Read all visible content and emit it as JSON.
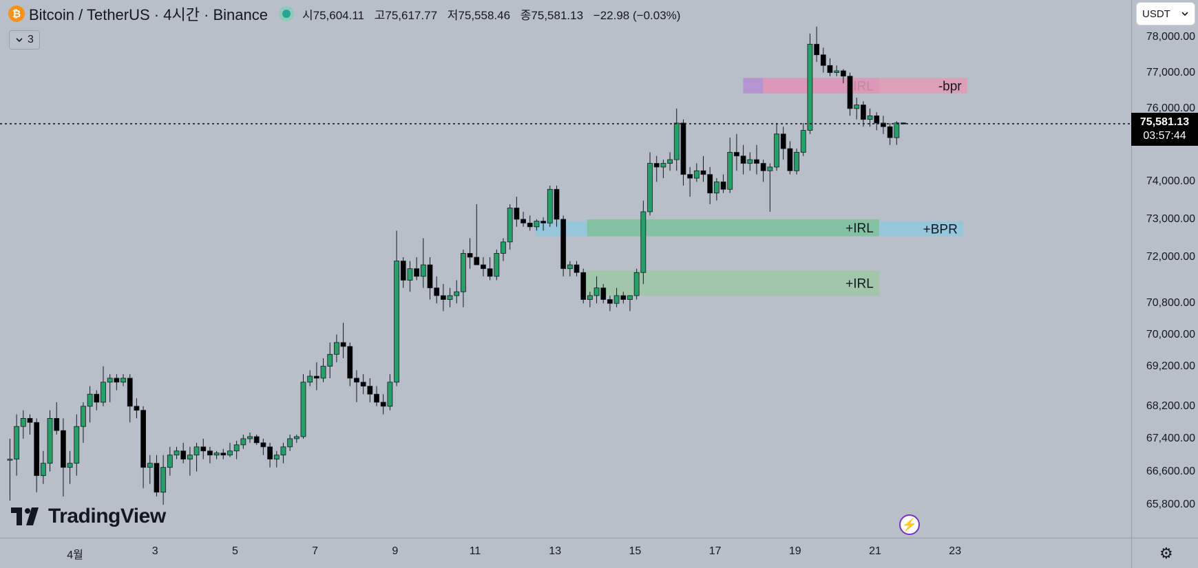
{
  "header": {
    "symbol_title": "Bitcoin / TetherUS · 4시간 · Binance",
    "btc_icon": "₿",
    "open_label": "시",
    "open": "75,604.11",
    "high_label": "고",
    "high": "75,617.77",
    "low_label": "저",
    "low": "75,558.46",
    "close_label": "종",
    "close": "75,581.13",
    "change": "−22.98 (−0.03%)"
  },
  "indicator_toggle": {
    "icon": "chevron-down-icon",
    "count": "3"
  },
  "currency_select": {
    "value": "USDT"
  },
  "last_price": {
    "value": "75,581.13",
    "countdown": "03:57:44"
  },
  "logo": {
    "text": "TradingView"
  },
  "colors": {
    "up": "#26a069",
    "down": "#000000",
    "background": "#b9bfc9"
  },
  "chart_data": {
    "type": "candlestick",
    "timeframe": "4시간",
    "title": "Bitcoin / TetherUS · 4시간 · Binance",
    "ylim": [
      65000,
      78800
    ],
    "price_axis": {
      "scale": "log",
      "ticks": [
        {
          "value": 78000,
          "label": "78,000.00"
        },
        {
          "value": 77000,
          "label": "77,000.00"
        },
        {
          "value": 76000,
          "label": "76,000.00"
        },
        {
          "value": 74000,
          "label": "74,000.00"
        },
        {
          "value": 73000,
          "label": "73,000.00"
        },
        {
          "value": 72000,
          "label": "72,000.00"
        },
        {
          "value": 70800,
          "label": "70,800.00"
        },
        {
          "value": 70000,
          "label": "70,000.00"
        },
        {
          "value": 69200,
          "label": "69,200.00"
        },
        {
          "value": 68200,
          "label": "68,200.00"
        },
        {
          "value": 67400,
          "label": "67,400.00"
        },
        {
          "value": 66600,
          "label": "66,600.00"
        },
        {
          "value": 65800,
          "label": "65,800.00"
        }
      ]
    },
    "time_axis": {
      "ticks": [
        {
          "day": 1,
          "label": "4월"
        },
        {
          "day": 3,
          "label": "3"
        },
        {
          "day": 5,
          "label": "5"
        },
        {
          "day": 7,
          "label": "7"
        },
        {
          "day": 9,
          "label": "9"
        },
        {
          "day": 11,
          "label": "11"
        },
        {
          "day": 13,
          "label": "13"
        },
        {
          "day": 15,
          "label": "15"
        },
        {
          "day": 17,
          "label": "17"
        },
        {
          "day": 19,
          "label": "19"
        },
        {
          "day": 21,
          "label": "21"
        },
        {
          "day": 23,
          "label": "23"
        }
      ]
    },
    "last_price": 75581.13,
    "zones": [
      {
        "label": "-IRL",
        "kind": "irl-bearish",
        "from_day": 17.7,
        "to_day": 21.1,
        "high": 76850,
        "low": 76420,
        "color": "#b48cd4"
      },
      {
        "label": "-bpr",
        "kind": "bpr-bearish",
        "from_day": 18.2,
        "to_day": 23.3,
        "high": 76850,
        "low": 76420,
        "color": "#e39ab3"
      },
      {
        "label": "+BPR",
        "kind": "bpr-bullish",
        "from_day": 12.5,
        "to_day": 23.2,
        "high": 72950,
        "low": 72550,
        "color": "#8ec7dc"
      },
      {
        "label": "+IRL",
        "kind": "irl-bullish",
        "from_day": 13.8,
        "to_day": 21.1,
        "high": 73000,
        "low": 72550,
        "color": "#7fbf96"
      },
      {
        "label": "+IRL",
        "kind": "irl-bullish",
        "from_day": 13.7,
        "to_day": 21.1,
        "high": 71650,
        "low": 71000,
        "color": "#9cc7a5"
      }
    ],
    "candles": [
      {
        "o": 66900,
        "h": 67400,
        "l": 65900,
        "c": 66900
      },
      {
        "o": 66900,
        "h": 68000,
        "l": 66500,
        "c": 67700
      },
      {
        "o": 67700,
        "h": 68100,
        "l": 67400,
        "c": 67900
      },
      {
        "o": 67900,
        "h": 68000,
        "l": 67500,
        "c": 67800
      },
      {
        "o": 67800,
        "h": 67900,
        "l": 66100,
        "c": 66500
      },
      {
        "o": 66500,
        "h": 67100,
        "l": 66300,
        "c": 66800
      },
      {
        "o": 66800,
        "h": 68100,
        "l": 66600,
        "c": 67900
      },
      {
        "o": 67900,
        "h": 68300,
        "l": 67500,
        "c": 67600
      },
      {
        "o": 67600,
        "h": 67900,
        "l": 66000,
        "c": 66700
      },
      {
        "o": 66700,
        "h": 67100,
        "l": 66300,
        "c": 66800
      },
      {
        "o": 66800,
        "h": 68000,
        "l": 66500,
        "c": 67700
      },
      {
        "o": 67700,
        "h": 68300,
        "l": 67300,
        "c": 68200
      },
      {
        "o": 68200,
        "h": 68700,
        "l": 67800,
        "c": 68500
      },
      {
        "o": 68500,
        "h": 68600,
        "l": 68100,
        "c": 68300
      },
      {
        "o": 68300,
        "h": 69200,
        "l": 68200,
        "c": 68800
      },
      {
        "o": 68800,
        "h": 69000,
        "l": 68300,
        "c": 68900
      },
      {
        "o": 68900,
        "h": 69000,
        "l": 68600,
        "c": 68800
      },
      {
        "o": 68800,
        "h": 69000,
        "l": 68700,
        "c": 68900
      },
      {
        "o": 68900,
        "h": 69000,
        "l": 67800,
        "c": 68200
      },
      {
        "o": 68200,
        "h": 68400,
        "l": 67900,
        "c": 68100
      },
      {
        "o": 68100,
        "h": 68200,
        "l": 66200,
        "c": 66700
      },
      {
        "o": 66700,
        "h": 67000,
        "l": 66300,
        "c": 66800
      },
      {
        "o": 66800,
        "h": 67000,
        "l": 66000,
        "c": 66100
      },
      {
        "o": 66100,
        "h": 67000,
        "l": 65800,
        "c": 66700
      },
      {
        "o": 66700,
        "h": 67200,
        "l": 66500,
        "c": 67000
      },
      {
        "o": 67000,
        "h": 67200,
        "l": 66900,
        "c": 67100
      },
      {
        "o": 67100,
        "h": 67300,
        "l": 66800,
        "c": 66900
      },
      {
        "o": 66900,
        "h": 67200,
        "l": 66500,
        "c": 67000
      },
      {
        "o": 67000,
        "h": 67300,
        "l": 66600,
        "c": 67200
      },
      {
        "o": 67200,
        "h": 67400,
        "l": 66900,
        "c": 67100
      },
      {
        "o": 67100,
        "h": 67200,
        "l": 66800,
        "c": 67000
      },
      {
        "o": 67000,
        "h": 67100,
        "l": 66900,
        "c": 67050
      },
      {
        "o": 67050,
        "h": 67150,
        "l": 66900,
        "c": 67000
      },
      {
        "o": 67000,
        "h": 67300,
        "l": 66950,
        "c": 67100
      },
      {
        "o": 67100,
        "h": 67350,
        "l": 66900,
        "c": 67250
      },
      {
        "o": 67250,
        "h": 67500,
        "l": 67150,
        "c": 67400
      },
      {
        "o": 67400,
        "h": 67550,
        "l": 67300,
        "c": 67450
      },
      {
        "o": 67450,
        "h": 67500,
        "l": 67250,
        "c": 67300
      },
      {
        "o": 67300,
        "h": 67400,
        "l": 67000,
        "c": 67200
      },
      {
        "o": 67200,
        "h": 67300,
        "l": 66700,
        "c": 66900
      },
      {
        "o": 66900,
        "h": 67100,
        "l": 66700,
        "c": 67000
      },
      {
        "o": 67000,
        "h": 67300,
        "l": 66800,
        "c": 67200
      },
      {
        "o": 67200,
        "h": 67500,
        "l": 67100,
        "c": 67400
      },
      {
        "o": 67400,
        "h": 67500,
        "l": 67300,
        "c": 67450
      },
      {
        "o": 67450,
        "h": 69000,
        "l": 67400,
        "c": 68800
      },
      {
        "o": 68800,
        "h": 69100,
        "l": 68700,
        "c": 68950
      },
      {
        "o": 68950,
        "h": 69300,
        "l": 68600,
        "c": 68900
      },
      {
        "o": 68900,
        "h": 69400,
        "l": 68800,
        "c": 69200
      },
      {
        "o": 69200,
        "h": 69800,
        "l": 68900,
        "c": 69500
      },
      {
        "o": 69500,
        "h": 70000,
        "l": 69300,
        "c": 69800
      },
      {
        "o": 69800,
        "h": 70300,
        "l": 69400,
        "c": 69700
      },
      {
        "o": 69700,
        "h": 69800,
        "l": 68700,
        "c": 68900
      },
      {
        "o": 68900,
        "h": 69100,
        "l": 68300,
        "c": 68800
      },
      {
        "o": 68800,
        "h": 69000,
        "l": 68500,
        "c": 68700
      },
      {
        "o": 68700,
        "h": 68900,
        "l": 68300,
        "c": 68500
      },
      {
        "o": 68500,
        "h": 68700,
        "l": 68200,
        "c": 68300
      },
      {
        "o": 68300,
        "h": 68500,
        "l": 68000,
        "c": 68200
      },
      {
        "o": 68200,
        "h": 69000,
        "l": 68100,
        "c": 68800
      },
      {
        "o": 68800,
        "h": 72700,
        "l": 68700,
        "c": 71900
      },
      {
        "o": 71900,
        "h": 72000,
        "l": 71200,
        "c": 71400
      },
      {
        "o": 71400,
        "h": 71900,
        "l": 71100,
        "c": 71700
      },
      {
        "o": 71700,
        "h": 72000,
        "l": 71400,
        "c": 71500
      },
      {
        "o": 71500,
        "h": 72500,
        "l": 71200,
        "c": 71800
      },
      {
        "o": 71800,
        "h": 72000,
        "l": 70900,
        "c": 71200
      },
      {
        "o": 71200,
        "h": 71500,
        "l": 70800,
        "c": 71000
      },
      {
        "o": 71000,
        "h": 71300,
        "l": 70600,
        "c": 70900
      },
      {
        "o": 70900,
        "h": 71200,
        "l": 70700,
        "c": 71000
      },
      {
        "o": 71000,
        "h": 71400,
        "l": 70800,
        "c": 71100
      },
      {
        "o": 71100,
        "h": 72200,
        "l": 70700,
        "c": 72100
      },
      {
        "o": 72100,
        "h": 72500,
        "l": 71700,
        "c": 72000
      },
      {
        "o": 72000,
        "h": 73400,
        "l": 71800,
        "c": 71800
      },
      {
        "o": 71800,
        "h": 72000,
        "l": 71500,
        "c": 71700
      },
      {
        "o": 71700,
        "h": 72000,
        "l": 71400,
        "c": 71500
      },
      {
        "o": 71500,
        "h": 72200,
        "l": 71400,
        "c": 72100
      },
      {
        "o": 72100,
        "h": 72500,
        "l": 71900,
        "c": 72400
      },
      {
        "o": 72400,
        "h": 73400,
        "l": 72200,
        "c": 73300
      },
      {
        "o": 73300,
        "h": 73600,
        "l": 72800,
        "c": 73000
      },
      {
        "o": 73000,
        "h": 73200,
        "l": 72800,
        "c": 72900
      },
      {
        "o": 72900,
        "h": 73100,
        "l": 72700,
        "c": 72800
      },
      {
        "o": 72800,
        "h": 73000,
        "l": 72700,
        "c": 72950
      },
      {
        "o": 72950,
        "h": 73050,
        "l": 72700,
        "c": 72900
      },
      {
        "o": 72900,
        "h": 73900,
        "l": 72800,
        "c": 73800
      },
      {
        "o": 73800,
        "h": 73900,
        "l": 72800,
        "c": 73000
      },
      {
        "o": 73000,
        "h": 73100,
        "l": 71500,
        "c": 71700
      },
      {
        "o": 71700,
        "h": 71900,
        "l": 71500,
        "c": 71800
      },
      {
        "o": 71800,
        "h": 71900,
        "l": 71500,
        "c": 71600
      },
      {
        "o": 71600,
        "h": 71700,
        "l": 70800,
        "c": 70900
      },
      {
        "o": 70900,
        "h": 71100,
        "l": 70700,
        "c": 71000
      },
      {
        "o": 71000,
        "h": 71500,
        "l": 70800,
        "c": 71200
      },
      {
        "o": 71200,
        "h": 71300,
        "l": 70800,
        "c": 70900
      },
      {
        "o": 70900,
        "h": 71000,
        "l": 70600,
        "c": 70800
      },
      {
        "o": 70800,
        "h": 71200,
        "l": 70700,
        "c": 71000
      },
      {
        "o": 71000,
        "h": 71100,
        "l": 70800,
        "c": 70900
      },
      {
        "o": 70900,
        "h": 71000,
        "l": 70600,
        "c": 71000
      },
      {
        "o": 71000,
        "h": 71700,
        "l": 70900,
        "c": 71600
      },
      {
        "o": 71600,
        "h": 73500,
        "l": 71300,
        "c": 73200
      },
      {
        "o": 73200,
        "h": 74800,
        "l": 73100,
        "c": 74500
      },
      {
        "o": 74500,
        "h": 74700,
        "l": 74000,
        "c": 74400
      },
      {
        "o": 74400,
        "h": 74600,
        "l": 74100,
        "c": 74500
      },
      {
        "o": 74500,
        "h": 74800,
        "l": 74300,
        "c": 74600
      },
      {
        "o": 74600,
        "h": 76000,
        "l": 74300,
        "c": 75600
      },
      {
        "o": 75600,
        "h": 75700,
        "l": 73900,
        "c": 74200
      },
      {
        "o": 74200,
        "h": 74400,
        "l": 73600,
        "c": 74100
      },
      {
        "o": 74100,
        "h": 74500,
        "l": 74000,
        "c": 74300
      },
      {
        "o": 74300,
        "h": 74700,
        "l": 74000,
        "c": 74200
      },
      {
        "o": 74200,
        "h": 74400,
        "l": 73400,
        "c": 73700
      },
      {
        "o": 73700,
        "h": 74100,
        "l": 73500,
        "c": 74000
      },
      {
        "o": 74000,
        "h": 74200,
        "l": 73700,
        "c": 73800
      },
      {
        "o": 73800,
        "h": 75200,
        "l": 73700,
        "c": 74800
      },
      {
        "o": 74800,
        "h": 75300,
        "l": 74300,
        "c": 74700
      },
      {
        "o": 74700,
        "h": 75000,
        "l": 74200,
        "c": 74500
      },
      {
        "o": 74500,
        "h": 74800,
        "l": 74300,
        "c": 74600
      },
      {
        "o": 74600,
        "h": 75000,
        "l": 74200,
        "c": 74500
      },
      {
        "o": 74500,
        "h": 74600,
        "l": 74000,
        "c": 74300
      },
      {
        "o": 74300,
        "h": 74500,
        "l": 73200,
        "c": 74400
      },
      {
        "o": 74400,
        "h": 75600,
        "l": 74300,
        "c": 75300
      },
      {
        "o": 75300,
        "h": 75500,
        "l": 74600,
        "c": 74900
      },
      {
        "o": 74900,
        "h": 75100,
        "l": 74200,
        "c": 74300
      },
      {
        "o": 74300,
        "h": 74900,
        "l": 74200,
        "c": 74800
      },
      {
        "o": 74800,
        "h": 75600,
        "l": 74700,
        "c": 75400
      },
      {
        "o": 75400,
        "h": 78100,
        "l": 75300,
        "c": 77800
      },
      {
        "o": 77800,
        "h": 78300,
        "l": 77300,
        "c": 77500
      },
      {
        "o": 77500,
        "h": 77700,
        "l": 77000,
        "c": 77200
      },
      {
        "o": 77200,
        "h": 77400,
        "l": 76900,
        "c": 77000
      },
      {
        "o": 77000,
        "h": 77200,
        "l": 76900,
        "c": 77050
      },
      {
        "o": 77050,
        "h": 77100,
        "l": 76700,
        "c": 76900
      },
      {
        "o": 76900,
        "h": 77000,
        "l": 75800,
        "c": 76000
      },
      {
        "o": 76000,
        "h": 76300,
        "l": 75700,
        "c": 76100
      },
      {
        "o": 76100,
        "h": 76200,
        "l": 75500,
        "c": 75700
      },
      {
        "o": 75700,
        "h": 76000,
        "l": 75500,
        "c": 75800
      },
      {
        "o": 75800,
        "h": 75900,
        "l": 75400,
        "c": 75600
      },
      {
        "o": 75600,
        "h": 75800,
        "l": 75300,
        "c": 75500
      },
      {
        "o": 75500,
        "h": 75600,
        "l": 75000,
        "c": 75200
      },
      {
        "o": 75200,
        "h": 75650,
        "l": 75000,
        "c": 75604
      },
      {
        "o": 75604.11,
        "h": 75617.77,
        "l": 75558.46,
        "c": 75581.13
      }
    ]
  }
}
